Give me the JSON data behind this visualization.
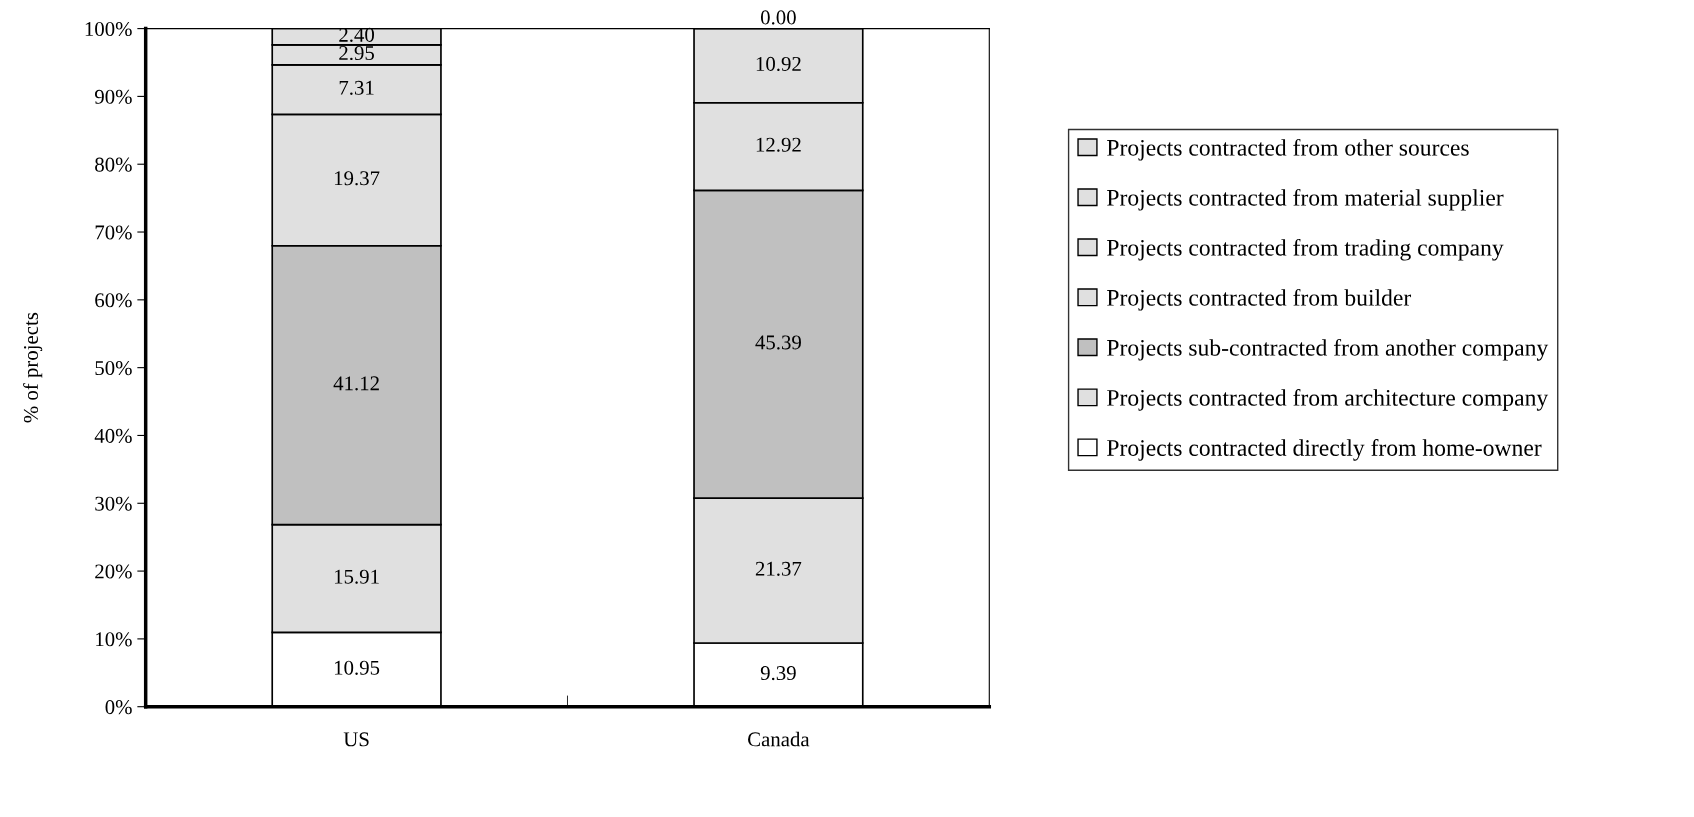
{
  "chart_data": {
    "type": "bar",
    "stacked": true,
    "ylabel": "% of projects",
    "categories": [
      "US",
      "Canada"
    ],
    "series": [
      {
        "name": "Projects contracted directly from home-owner",
        "color": "#ffffff",
        "values": [
          10.95,
          9.39
        ],
        "value_labels": [
          "10.95",
          "9.39"
        ]
      },
      {
        "name": "Projects contracted from architecture company",
        "color": "#e0e0e0",
        "values": [
          15.91,
          21.37
        ],
        "value_labels": [
          "15.91",
          "21.37"
        ]
      },
      {
        "name": "Projects sub-contracted from another company",
        "color": "#c0c0c0",
        "values": [
          41.12,
          45.39
        ],
        "value_labels": [
          "41.12",
          "45.39"
        ]
      },
      {
        "name": "Projects contracted from builder",
        "color": "#e0e0e0",
        "values": [
          19.37,
          12.92
        ],
        "value_labels": [
          "19.37",
          "12.92"
        ]
      },
      {
        "name": "Projects contracted from trading company",
        "color": "#e0e0e0",
        "values": [
          7.31,
          10.92
        ],
        "value_labels": [
          "7.31",
          "10.92"
        ]
      },
      {
        "name": "Projects contracted from material supplier",
        "color": "#e0e0e0",
        "values": [
          2.95,
          0.0
        ],
        "value_labels": [
          "2.95",
          null
        ]
      },
      {
        "name": "Projects contracted from other sources",
        "color": "#e0e0e0",
        "values": [
          2.4,
          0.0
        ],
        "value_labels": [
          "2.40",
          "0.00"
        ]
      }
    ],
    "legend": "right",
    "ylim": [
      0,
      100
    ],
    "yticks": [
      {
        "value": 0,
        "label": "0%"
      },
      {
        "value": 10,
        "label": "10%"
      },
      {
        "value": 20,
        "label": "20%"
      },
      {
        "value": 30,
        "label": "30%"
      },
      {
        "value": 40,
        "label": "40%"
      },
      {
        "value": 50,
        "label": "50%"
      },
      {
        "value": 60,
        "label": "60%"
      },
      {
        "value": 70,
        "label": "70%"
      },
      {
        "value": 80,
        "label": "80%"
      },
      {
        "value": 90,
        "label": "90%"
      },
      {
        "value": 100,
        "label": "100%"
      }
    ]
  }
}
